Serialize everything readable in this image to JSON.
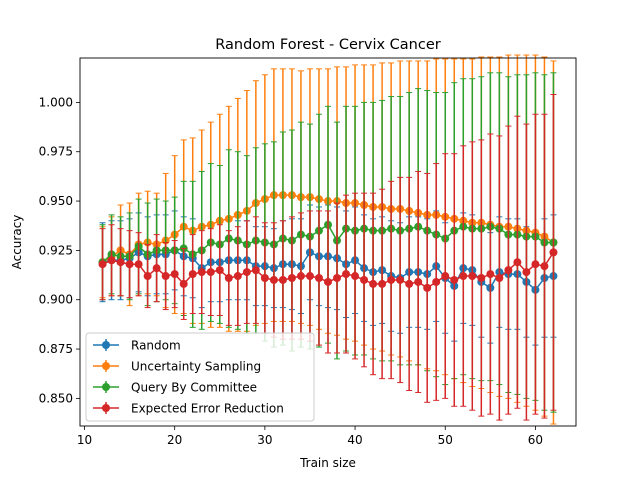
{
  "chart_data": {
    "type": "line",
    "title": "Random Forest - Cervix Cancer",
    "xlabel": "Train size",
    "ylabel": "Accuracy",
    "xlim": [
      9.5,
      64.5
    ],
    "ylim": [
      0.836,
      1.0225
    ],
    "xticks": [
      10,
      20,
      30,
      40,
      50,
      60
    ],
    "yticks": [
      0.85,
      0.875,
      0.9,
      0.925,
      0.95,
      0.975,
      1.0
    ],
    "ytick_labels": [
      "0.850",
      "0.875",
      "0.900",
      "0.925",
      "0.950",
      "0.975",
      "1.000"
    ],
    "legend_position": "lower-left",
    "grid": false,
    "x": [
      12,
      13,
      14,
      15,
      16,
      17,
      18,
      19,
      20,
      21,
      22,
      23,
      24,
      25,
      26,
      27,
      28,
      29,
      30,
      31,
      32,
      33,
      34,
      35,
      36,
      37,
      38,
      39,
      40,
      41,
      42,
      43,
      44,
      45,
      46,
      47,
      48,
      49,
      50,
      51,
      52,
      53,
      54,
      55,
      56,
      57,
      58,
      59,
      60,
      61,
      62
    ],
    "series": [
      {
        "name": "Random",
        "color": "#1f77b4",
        "values": [
          0.919,
          0.92,
          0.92,
          0.921,
          0.924,
          0.922,
          0.923,
          0.923,
          0.925,
          0.922,
          0.921,
          0.916,
          0.919,
          0.919,
          0.92,
          0.92,
          0.92,
          0.917,
          0.917,
          0.916,
          0.918,
          0.918,
          0.917,
          0.924,
          0.922,
          0.922,
          0.921,
          0.918,
          0.92,
          0.916,
          0.914,
          0.915,
          0.912,
          0.911,
          0.914,
          0.914,
          0.913,
          0.917,
          0.911,
          0.907,
          0.916,
          0.915,
          0.909,
          0.906,
          0.914,
          0.913,
          0.913,
          0.909,
          0.905,
          0.911,
          0.912
        ],
        "err": [
          0.02,
          0.02,
          0.02,
          0.02,
          0.02,
          0.02,
          0.02,
          0.02,
          0.02,
          0.02,
          0.02,
          0.02,
          0.02,
          0.02,
          0.02,
          0.02,
          0.02,
          0.02,
          0.02,
          0.02,
          0.022,
          0.023,
          0.024,
          0.024,
          0.025,
          0.026,
          0.026,
          0.027,
          0.027,
          0.027,
          0.027,
          0.027,
          0.028,
          0.028,
          0.028,
          0.028,
          0.028,
          0.028,
          0.028,
          0.028,
          0.028,
          0.028,
          0.028,
          0.028,
          0.028,
          0.028,
          0.028,
          0.028,
          0.028,
          0.03,
          0.031
        ]
      },
      {
        "name": "Uncertainty Sampling",
        "color": "#ff7f0e",
        "values": [
          0.919,
          0.922,
          0.925,
          0.923,
          0.928,
          0.929,
          0.928,
          0.93,
          0.933,
          0.937,
          0.935,
          0.937,
          0.938,
          0.94,
          0.941,
          0.943,
          0.945,
          0.949,
          0.951,
          0.953,
          0.953,
          0.953,
          0.952,
          0.952,
          0.951,
          0.95,
          0.95,
          0.949,
          0.949,
          0.948,
          0.947,
          0.947,
          0.946,
          0.946,
          0.945,
          0.944,
          0.943,
          0.943,
          0.942,
          0.941,
          0.94,
          0.939,
          0.939,
          0.938,
          0.937,
          0.937,
          0.936,
          0.935,
          0.934,
          0.932,
          0.929
        ],
        "err": [
          0.018,
          0.02,
          0.023,
          0.026,
          0.026,
          0.026,
          0.026,
          0.034,
          0.04,
          0.044,
          0.047,
          0.049,
          0.052,
          0.054,
          0.057,
          0.059,
          0.061,
          0.062,
          0.063,
          0.064,
          0.064,
          0.064,
          0.064,
          0.065,
          0.066,
          0.067,
          0.068,
          0.069,
          0.07,
          0.071,
          0.072,
          0.073,
          0.074,
          0.075,
          0.076,
          0.077,
          0.078,
          0.079,
          0.08,
          0.081,
          0.082,
          0.083,
          0.084,
          0.085,
          0.086,
          0.087,
          0.088,
          0.089,
          0.09,
          0.091,
          0.092
        ]
      },
      {
        "name": "Query By Committee",
        "color": "#2ca02c",
        "values": [
          0.919,
          0.923,
          0.922,
          0.922,
          0.927,
          0.923,
          0.925,
          0.925,
          0.925,
          0.926,
          0.923,
          0.925,
          0.929,
          0.928,
          0.931,
          0.93,
          0.928,
          0.93,
          0.929,
          0.928,
          0.931,
          0.93,
          0.933,
          0.932,
          0.935,
          0.938,
          0.93,
          0.936,
          0.935,
          0.936,
          0.935,
          0.935,
          0.936,
          0.935,
          0.936,
          0.937,
          0.935,
          0.933,
          0.931,
          0.935,
          0.937,
          0.936,
          0.936,
          0.937,
          0.936,
          0.933,
          0.933,
          0.932,
          0.932,
          0.929,
          0.929
        ],
        "err": [
          0.019,
          0.02,
          0.02,
          0.022,
          0.024,
          0.026,
          0.026,
          0.025,
          0.027,
          0.034,
          0.037,
          0.04,
          0.04,
          0.04,
          0.045,
          0.045,
          0.045,
          0.047,
          0.05,
          0.052,
          0.054,
          0.056,
          0.057,
          0.057,
          0.059,
          0.06,
          0.06,
          0.062,
          0.063,
          0.064,
          0.065,
          0.066,
          0.067,
          0.068,
          0.069,
          0.07,
          0.071,
          0.072,
          0.074,
          0.075,
          0.075,
          0.076,
          0.077,
          0.078,
          0.079,
          0.08,
          0.081,
          0.082,
          0.083,
          0.085,
          0.086
        ]
      },
      {
        "name": "Expected Error Reduction",
        "color": "#d62728",
        "values": [
          0.918,
          0.92,
          0.919,
          0.918,
          0.918,
          0.912,
          0.916,
          0.912,
          0.913,
          0.908,
          0.913,
          0.914,
          0.914,
          0.915,
          0.911,
          0.912,
          0.914,
          0.915,
          0.911,
          0.91,
          0.91,
          0.911,
          0.912,
          0.912,
          0.911,
          0.909,
          0.911,
          0.913,
          0.912,
          0.91,
          0.908,
          0.908,
          0.91,
          0.91,
          0.908,
          0.909,
          0.906,
          0.909,
          0.912,
          0.91,
          0.912,
          0.912,
          0.911,
          0.913,
          0.911,
          0.915,
          0.919,
          0.914,
          0.918,
          0.917,
          0.924
        ],
        "err": [
          0.018,
          0.018,
          0.017,
          0.017,
          0.016,
          0.016,
          0.017,
          0.017,
          0.017,
          0.018,
          0.02,
          0.021,
          0.022,
          0.023,
          0.024,
          0.025,
          0.026,
          0.027,
          0.028,
          0.029,
          0.03,
          0.031,
          0.032,
          0.033,
          0.034,
          0.036,
          0.038,
          0.04,
          0.042,
          0.044,
          0.046,
          0.048,
          0.05,
          0.052,
          0.054,
          0.056,
          0.058,
          0.06,
          0.062,
          0.064,
          0.066,
          0.068,
          0.07,
          0.071,
          0.072,
          0.073,
          0.074,
          0.075,
          0.076,
          0.077,
          0.08
        ]
      }
    ]
  }
}
